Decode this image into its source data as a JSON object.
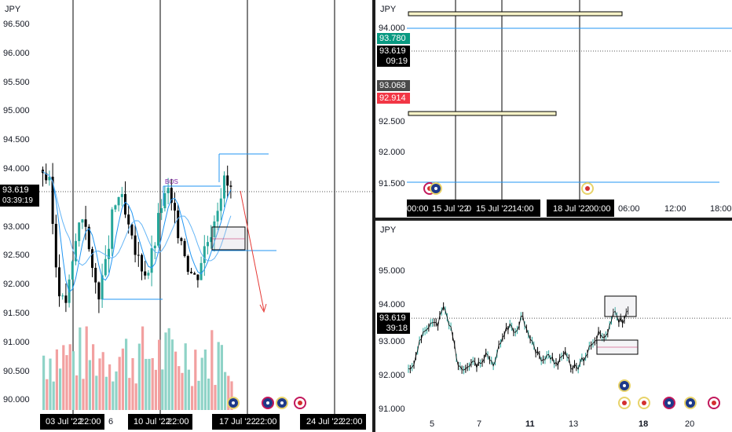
{
  "left_pane": {
    "symbol": "JPY",
    "y_labels": [
      "96.500",
      "96.000",
      "95.500",
      "95.000",
      "94.500",
      "94.000",
      "93.500",
      "93.000",
      "92.500",
      "92.000",
      "91.500",
      "91.000",
      "90.500",
      "90.000"
    ],
    "price_tag": "93.619",
    "countdown": "03:39:19",
    "bos_label": "BOS",
    "x_labels": [
      "03 Jul '22",
      "22:00",
      "6",
      "10 Jul '22",
      "22:00",
      "17 Jul '22",
      "22:00",
      "24 Jul '22",
      "22:00"
    ]
  },
  "top_right_pane": {
    "symbol": "JPY",
    "y_labels": [
      "94.000",
      "92.500",
      "92.000",
      "91.500"
    ],
    "tag_green": "93.780",
    "price_tag": "93.619",
    "countdown": "09:19",
    "tag_grey": "93.068",
    "tag_red": "92.914",
    "x_labels": [
      "00:00",
      "15 Jul '22",
      "0",
      "15 Jul '22",
      "14:00",
      "18 Jul '22",
      "00:00",
      "06:00",
      "12:00",
      "18:00"
    ]
  },
  "bottom_right_pane": {
    "symbol": "JPY",
    "y_labels": [
      "95.000",
      "94.000",
      "93.000",
      "92.000",
      "91.000"
    ],
    "price_tag": "93.619",
    "countdown": "39:18",
    "x_labels": [
      "5",
      "7",
      "11",
      "13",
      "18",
      "20"
    ]
  },
  "colors": {
    "bull": "#26a69a",
    "bear": "#000000",
    "vol_bull": "#8fd3c7",
    "vol_bear": "#f2a0a0",
    "level_line": "#2196f3",
    "ma_line": "#2196f3",
    "arrow": "#e53935",
    "tag_green": "#089981",
    "tag_red": "#f23645",
    "tag_grey": "#4a4a4a"
  },
  "icons": [
    "jp-flag-icon",
    "au-flag-icon"
  ]
}
